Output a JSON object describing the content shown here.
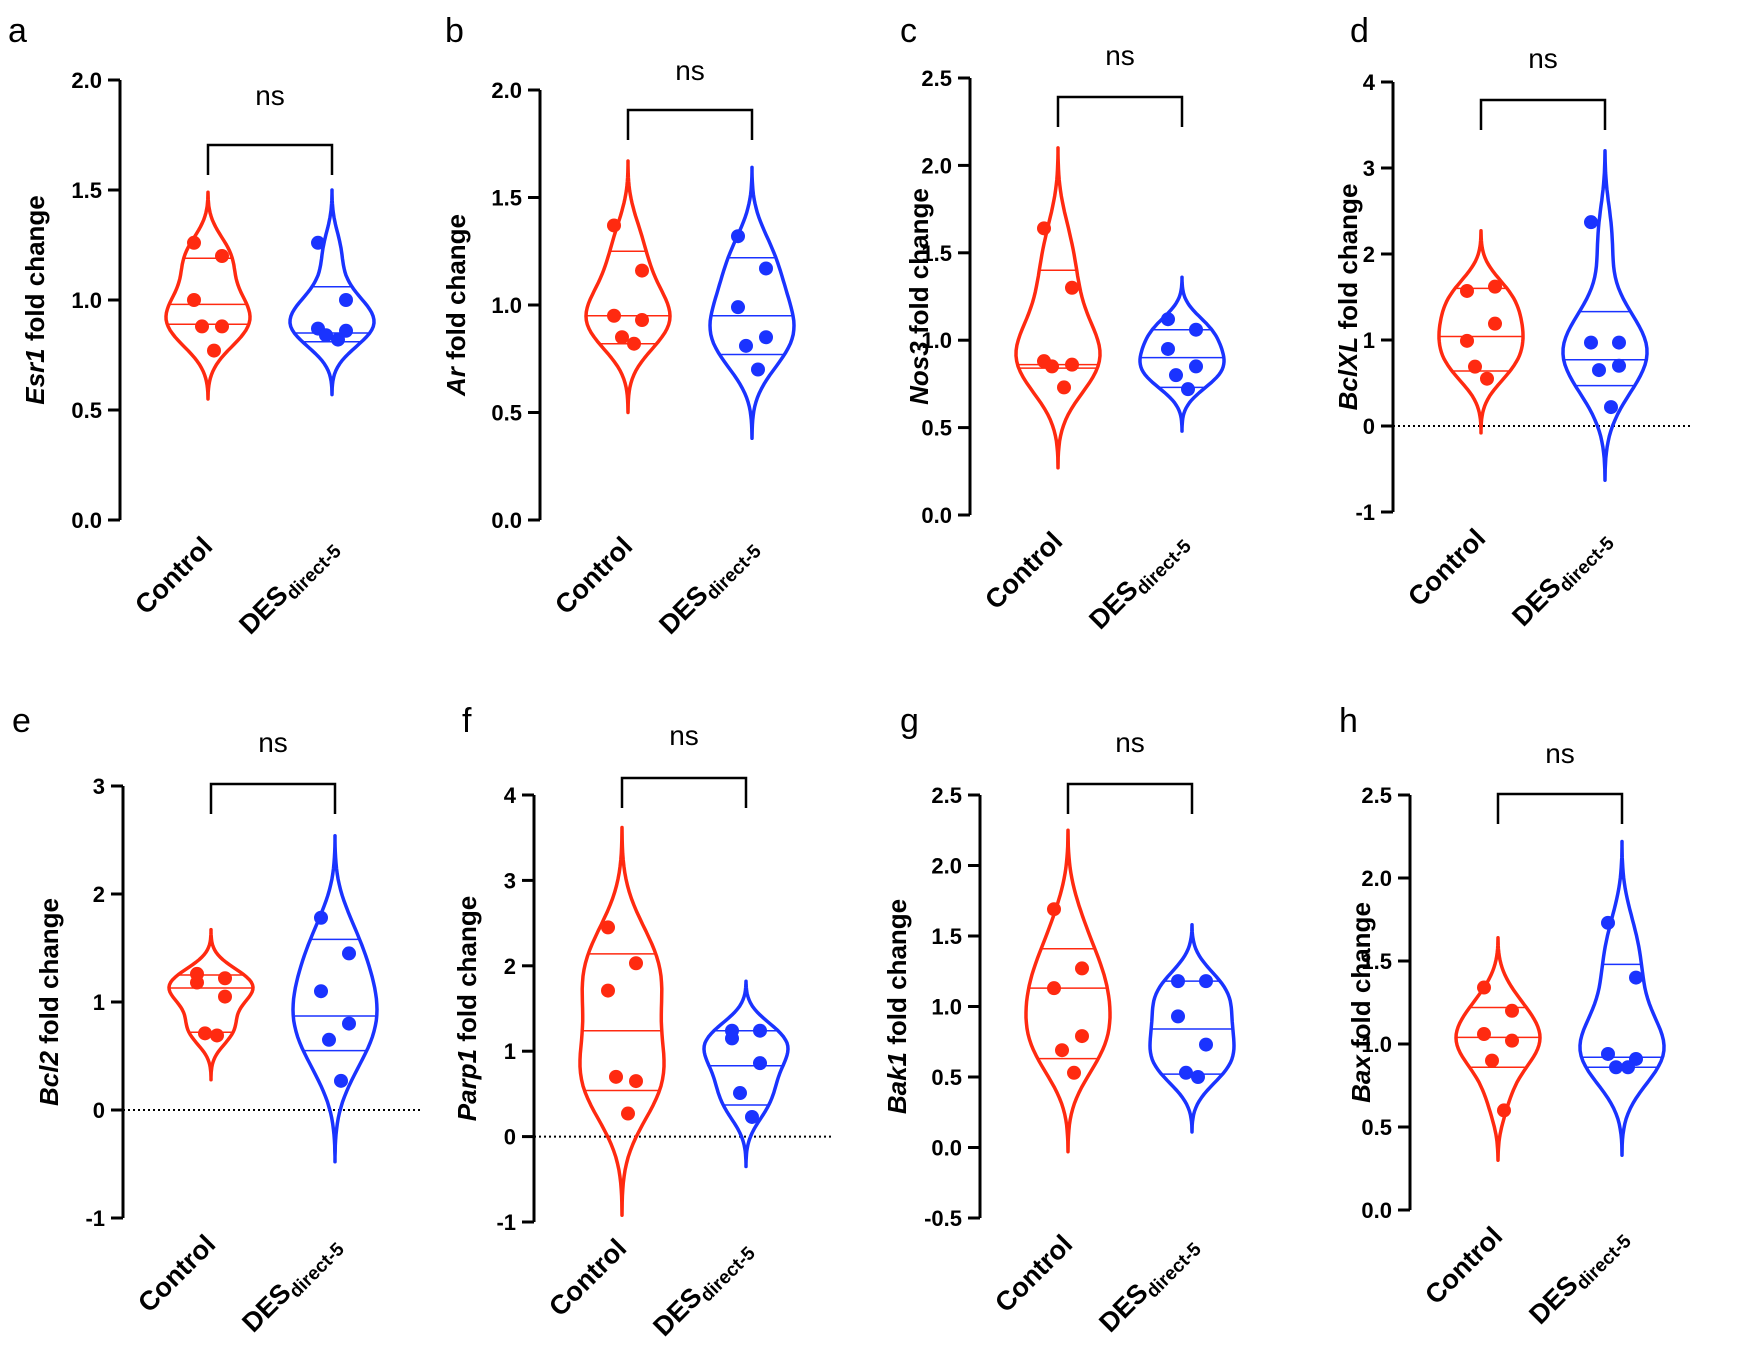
{
  "colors": {
    "control": "#ff2a10",
    "des": "#1a33ff",
    "axis": "#000000"
  },
  "chart_data": [
    {
      "panel": "a",
      "gene": "Esr1",
      "ylabel_suffix": " fold change",
      "type": "violin",
      "ylim": [
        0,
        2
      ],
      "yticks": [
        "0.0",
        "0.5",
        "1.0",
        "1.5",
        "2.0"
      ],
      "zero_line": false,
      "significance": "ns",
      "groups": [
        {
          "name": "Control",
          "points": [
            1.26,
            1.2,
            1.0,
            0.88,
            0.88,
            0.77
          ],
          "quartiles": [
            0.89,
            0.98,
            1.19
          ],
          "range": [
            0.55,
            1.49
          ]
        },
        {
          "name": "DES",
          "subscript": "direct-5",
          "points": [
            1.26,
            1.0,
            0.87,
            0.86,
            0.84,
            0.82
          ],
          "quartiles": [
            0.81,
            0.85,
            1.06
          ],
          "range": [
            0.57,
            1.5
          ]
        }
      ]
    },
    {
      "panel": "b",
      "gene": "Ar",
      "ylabel_suffix": " fold change",
      "type": "violin",
      "ylim": [
        0,
        2
      ],
      "yticks": [
        "0.0",
        "0.5",
        "1.0",
        "1.5",
        "2.0"
      ],
      "zero_line": false,
      "significance": "ns",
      "groups": [
        {
          "name": "Control",
          "points": [
            1.37,
            1.16,
            0.95,
            0.93,
            0.85,
            0.82
          ],
          "quartiles": [
            0.82,
            0.95,
            1.25
          ],
          "range": [
            0.5,
            1.67
          ]
        },
        {
          "name": "DES",
          "subscript": "direct-5",
          "points": [
            1.32,
            1.17,
            0.99,
            0.85,
            0.81,
            0.7
          ],
          "quartiles": [
            0.77,
            0.95,
            1.22
          ],
          "range": [
            0.38,
            1.64
          ]
        }
      ]
    },
    {
      "panel": "c",
      "gene": "Nos3",
      "ylabel_suffix": " fold change",
      "type": "violin",
      "ylim": [
        0,
        2.5
      ],
      "yticks": [
        "0.0",
        "0.5",
        "1.0",
        "1.5",
        "2.0",
        "2.5"
      ],
      "zero_line": false,
      "significance": "ns",
      "groups": [
        {
          "name": "Control",
          "points": [
            1.64,
            1.3,
            0.88,
            0.86,
            0.85,
            0.73
          ],
          "quartiles": [
            0.84,
            0.86,
            1.4
          ],
          "range": [
            0.27,
            2.1
          ]
        },
        {
          "name": "DES",
          "subscript": "direct-5",
          "points": [
            1.12,
            1.06,
            0.95,
            0.85,
            0.8,
            0.72
          ],
          "quartiles": [
            0.73,
            0.9,
            1.06
          ],
          "range": [
            0.48,
            1.36
          ]
        }
      ]
    },
    {
      "panel": "d",
      "gene": "BclXL",
      "ylabel_suffix": " fold change",
      "type": "violin",
      "ylim": [
        -1,
        4
      ],
      "yticks": [
        "-1",
        "0",
        "1",
        "2",
        "3",
        "4"
      ],
      "zero_line": true,
      "significance": "ns",
      "groups": [
        {
          "name": "Control",
          "points": [
            1.57,
            1.62,
            0.99,
            1.19,
            0.69,
            0.55
          ],
          "quartiles": [
            0.64,
            1.04,
            1.6
          ],
          "range": [
            -0.08,
            2.27
          ]
        },
        {
          "name": "DES",
          "subscript": "direct-5",
          "points": [
            2.37,
            0.97,
            0.97,
            0.7,
            0.65,
            0.22
          ],
          "quartiles": [
            0.47,
            0.77,
            1.33
          ],
          "range": [
            -0.63,
            3.2
          ]
        }
      ]
    },
    {
      "panel": "e",
      "gene": "Bcl2",
      "ylabel_suffix": " fold change",
      "type": "violin",
      "ylim": [
        -1,
        3
      ],
      "yticks": [
        "-1",
        "0",
        "1",
        "2",
        "3"
      ],
      "zero_line": true,
      "significance": "ns",
      "groups": [
        {
          "name": "Control",
          "points": [
            1.26,
            1.22,
            1.18,
            1.05,
            0.71,
            0.69
          ],
          "quartiles": [
            0.72,
            1.13,
            1.25
          ],
          "range": [
            0.28,
            1.67
          ]
        },
        {
          "name": "DES",
          "subscript": "direct-5",
          "points": [
            1.78,
            1.45,
            1.1,
            0.8,
            0.65,
            0.27
          ],
          "quartiles": [
            0.55,
            0.87,
            1.58
          ],
          "range": [
            -0.48,
            2.54
          ]
        }
      ]
    },
    {
      "panel": "f",
      "gene": "Parp1",
      "ylabel_suffix": " fold change",
      "type": "violin",
      "ylim": [
        -1,
        4
      ],
      "yticks": [
        "-1",
        "0",
        "1",
        "2",
        "3",
        "4"
      ],
      "zero_line": true,
      "significance": "ns",
      "groups": [
        {
          "name": "Control",
          "points": [
            2.45,
            2.03,
            1.71,
            0.65,
            0.7,
            0.27
          ],
          "quartiles": [
            0.54,
            1.24,
            2.14
          ],
          "range": [
            -0.92,
            3.62
          ]
        },
        {
          "name": "DES",
          "subscript": "direct-5",
          "points": [
            1.24,
            1.24,
            1.15,
            0.86,
            0.51,
            0.23
          ],
          "quartiles": [
            0.37,
            0.83,
            1.24
          ],
          "range": [
            -0.35,
            1.82
          ]
        }
      ]
    },
    {
      "panel": "g",
      "gene": "Bak1",
      "ylabel_suffix": " fold change",
      "type": "violin",
      "ylim": [
        -0.5,
        2.5
      ],
      "yticks": [
        "-0.5",
        "0.0",
        "0.5",
        "1.0",
        "1.5",
        "2.0",
        "2.5"
      ],
      "zero_line": false,
      "significance": "ns",
      "groups": [
        {
          "name": "Control",
          "points": [
            1.69,
            1.27,
            1.13,
            0.79,
            0.69,
            0.53
          ],
          "quartiles": [
            0.63,
            1.13,
            1.41
          ],
          "range": [
            -0.03,
            2.25
          ]
        },
        {
          "name": "DES",
          "subscript": "direct-5",
          "points": [
            1.18,
            1.18,
            0.93,
            0.73,
            0.53,
            0.5
          ],
          "quartiles": [
            0.52,
            0.84,
            1.18
          ],
          "range": [
            0.11,
            1.58
          ]
        }
      ]
    },
    {
      "panel": "h",
      "gene": "Bax",
      "ylabel_suffix": " fold change",
      "type": "violin",
      "ylim": [
        0,
        2.5
      ],
      "yticks": [
        "0.0",
        "0.5",
        "1.0",
        "1.5",
        "2.0",
        "2.5"
      ],
      "zero_line": false,
      "significance": "ns",
      "groups": [
        {
          "name": "Control",
          "points": [
            1.34,
            1.2,
            1.06,
            1.02,
            0.9,
            0.6
          ],
          "quartiles": [
            0.86,
            1.04,
            1.22
          ],
          "range": [
            0.3,
            1.64
          ]
        },
        {
          "name": "DES",
          "subscript": "direct-5",
          "points": [
            1.73,
            1.4,
            0.94,
            0.91,
            0.86,
            0.86
          ],
          "quartiles": [
            0.86,
            0.92,
            1.48
          ],
          "range": [
            0.33,
            2.22
          ]
        }
      ]
    }
  ]
}
